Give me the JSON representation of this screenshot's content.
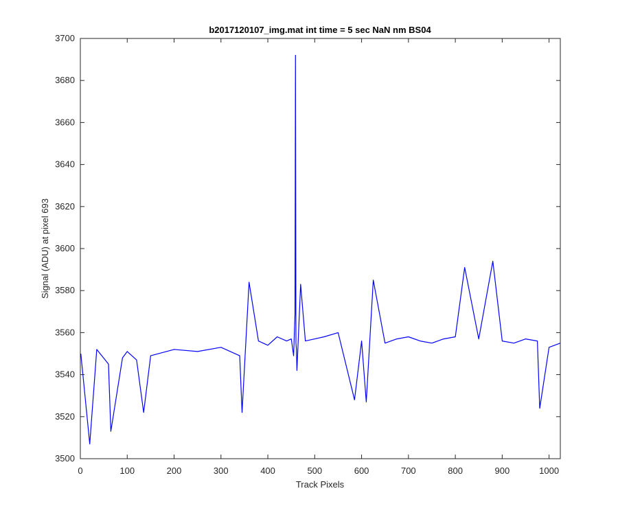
{
  "chart_data": {
    "type": "line",
    "title": "b2017120107_img.mat int time = 5 sec  NaN nm BS04",
    "xlabel": "Track Pixels",
    "ylabel": "Signal (ADU) at pixel 693",
    "xlim": [
      0,
      1024
    ],
    "ylim": [
      3500,
      3700
    ],
    "xticks": [
      0,
      100,
      200,
      300,
      400,
      500,
      600,
      700,
      800,
      900,
      1000
    ],
    "yticks": [
      3500,
      3520,
      3540,
      3560,
      3580,
      3600,
      3620,
      3640,
      3660,
      3680,
      3700
    ],
    "grid": false,
    "line_color": "#0000ff",
    "series": [
      {
        "x": [
          1,
          20,
          35,
          60,
          65,
          90,
          100,
          120,
          135,
          150,
          200,
          250,
          300,
          340,
          345,
          360,
          380,
          400,
          420,
          440,
          450,
          455,
          458,
          459,
          460,
          461,
          462,
          465,
          470,
          480,
          500,
          520,
          550,
          585,
          600,
          610,
          625,
          650,
          675,
          700,
          725,
          750,
          775,
          800,
          820,
          850,
          880,
          900,
          925,
          950,
          975,
          980,
          1000,
          1024
        ],
        "y": [
          3550,
          3507,
          3552,
          3545,
          3513,
          3548,
          3551,
          3547,
          3522,
          3549,
          3552,
          3551,
          3553,
          3549,
          3522,
          3584,
          3556,
          3554,
          3558,
          3556,
          3557,
          3549,
          3569,
          3692,
          3555,
          3552,
          3542,
          3557,
          3583,
          3556,
          3557,
          3558,
          3560,
          3528,
          3556,
          3527,
          3585,
          3555,
          3557,
          3558,
          3556,
          3555,
          3557,
          3558,
          3591,
          3557,
          3594,
          3556,
          3555,
          3557,
          3556,
          3524,
          3553,
          3555
        ]
      }
    ]
  }
}
